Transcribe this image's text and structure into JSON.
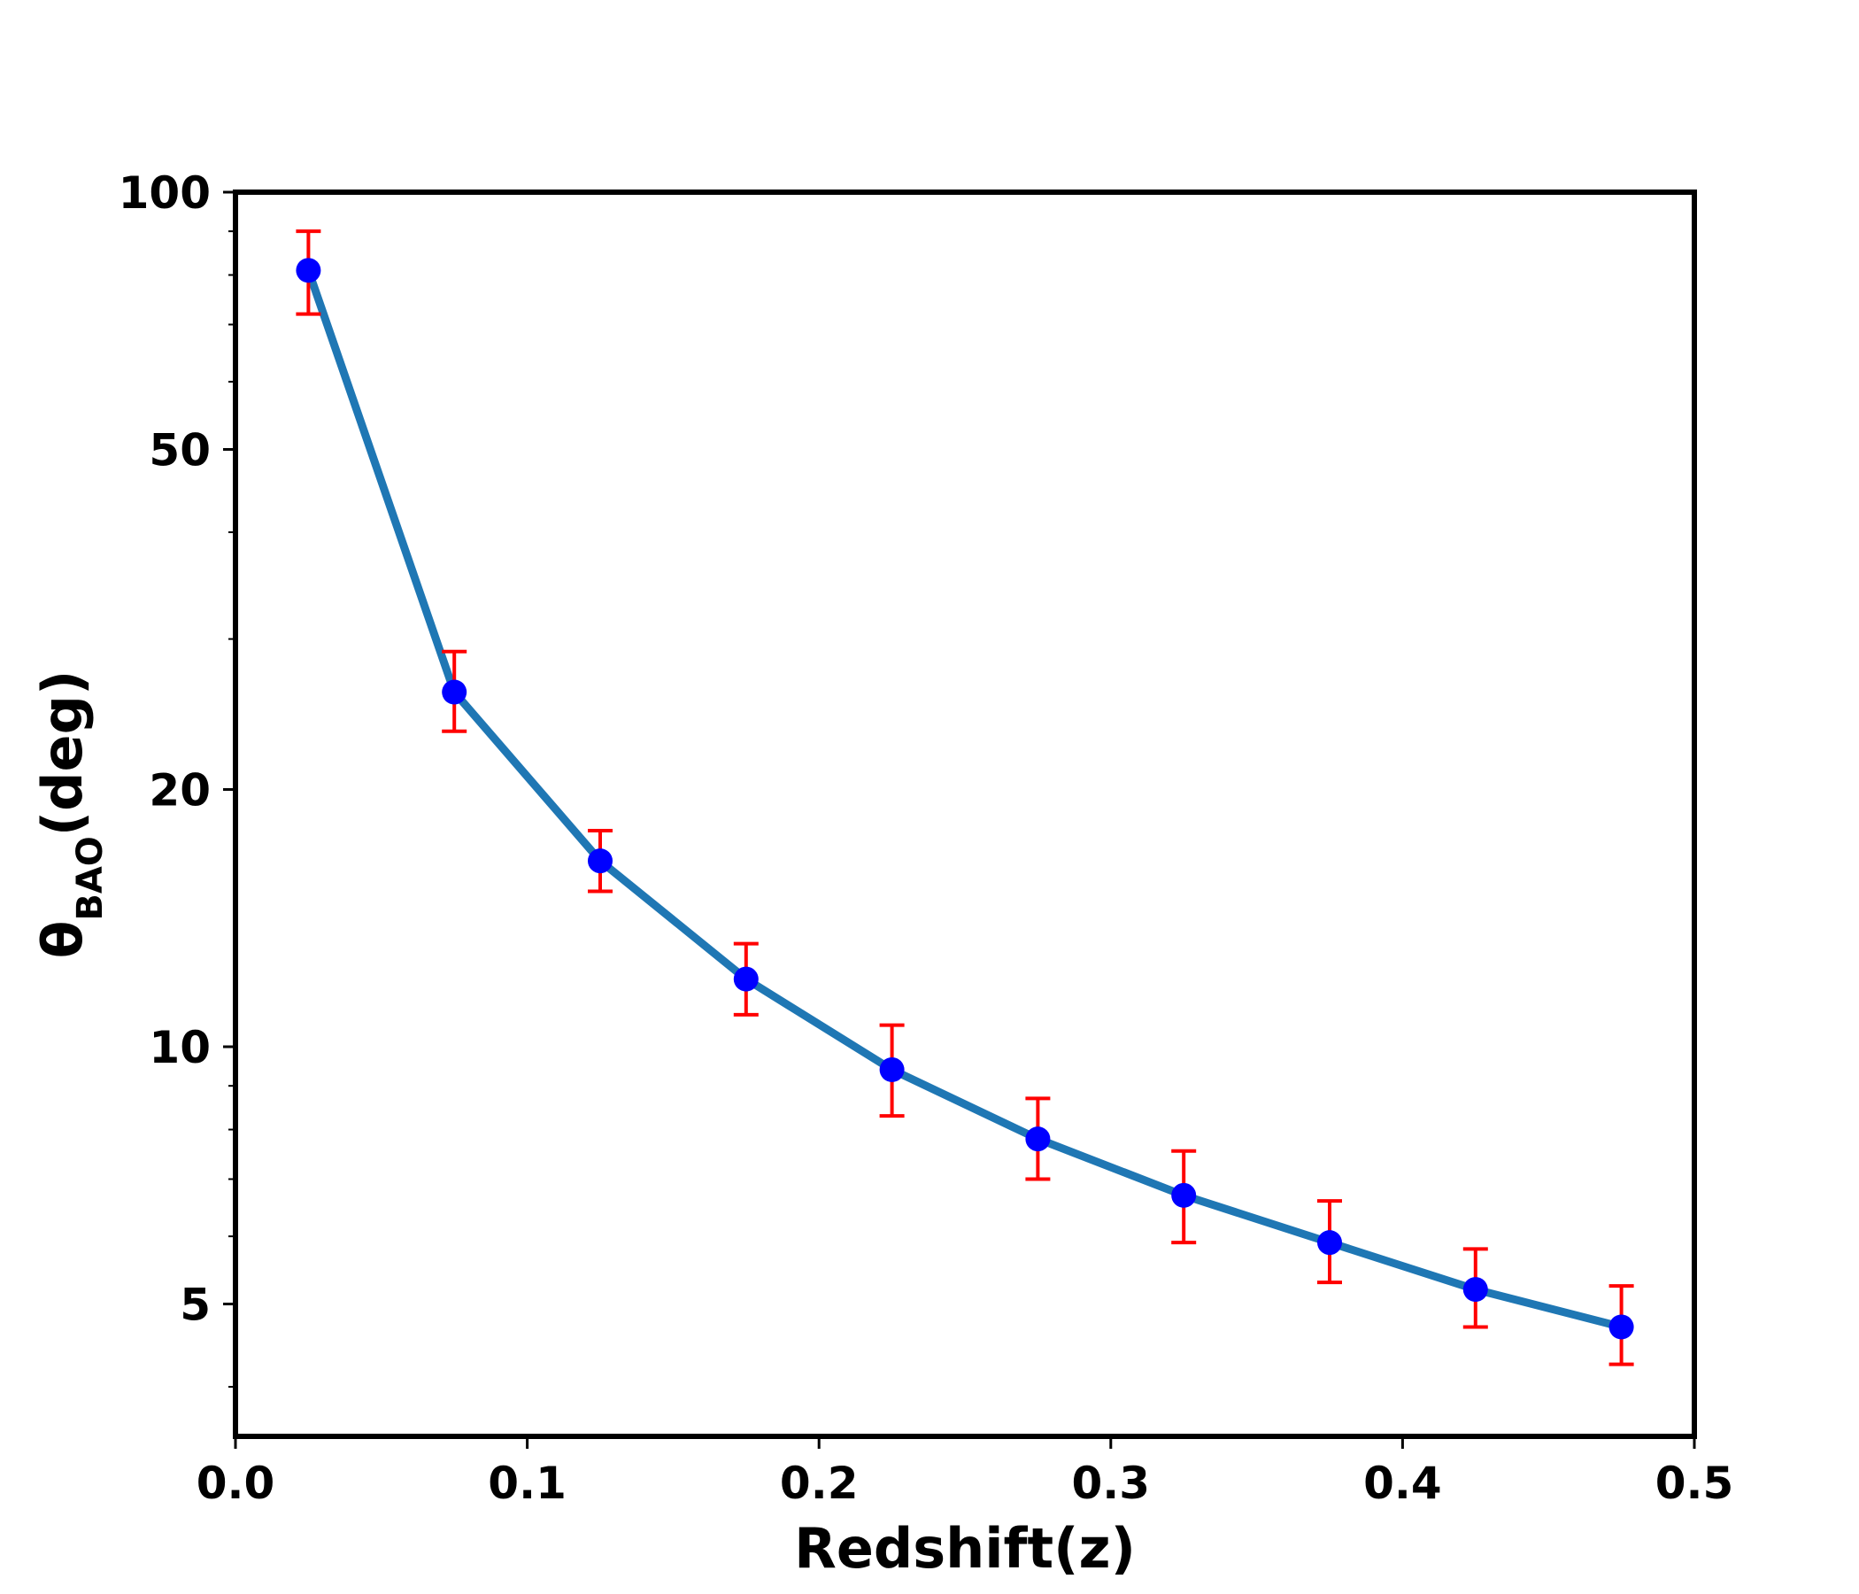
{
  "chart_data": {
    "type": "line",
    "xlabel": "Redshift(z)",
    "ylabel": "θ",
    "ylabel_subscript": "BAO",
    "ylabel_suffix": "(deg)",
    "yscale": "log",
    "xlim": [
      0.0,
      0.5
    ],
    "ylim": [
      3.5,
      100
    ],
    "grid": false,
    "legend": "none",
    "x_ticks": [
      "0.0",
      "0.1",
      "0.2",
      "0.3",
      "0.4",
      "0.5"
    ],
    "x_tick_values": [
      0.0,
      0.1,
      0.2,
      0.3,
      0.4,
      0.5
    ],
    "y_ticks": [
      "100",
      "50",
      "20",
      "10",
      "5"
    ],
    "y_tick_values": [
      100,
      50,
      20,
      10,
      5
    ],
    "series": [
      {
        "x": [
          0.025,
          0.075,
          0.125,
          0.175,
          0.225,
          0.275,
          0.325,
          0.375,
          0.425,
          0.475
        ],
        "y": [
          81,
          26,
          16.5,
          12,
          9.4,
          7.8,
          6.7,
          5.9,
          5.2,
          4.7
        ],
        "y_upper": [
          90,
          29,
          17.9,
          13.2,
          10.6,
          8.7,
          7.55,
          6.6,
          5.8,
          5.25
        ],
        "y_lower": [
          72,
          23.4,
          15.2,
          10.9,
          8.3,
          7.0,
          5.9,
          5.3,
          4.7,
          4.25
        ],
        "line_color": "#1f77b4",
        "marker_color": "#0000ff",
        "errorbar_color": "#ff0000"
      }
    ]
  }
}
